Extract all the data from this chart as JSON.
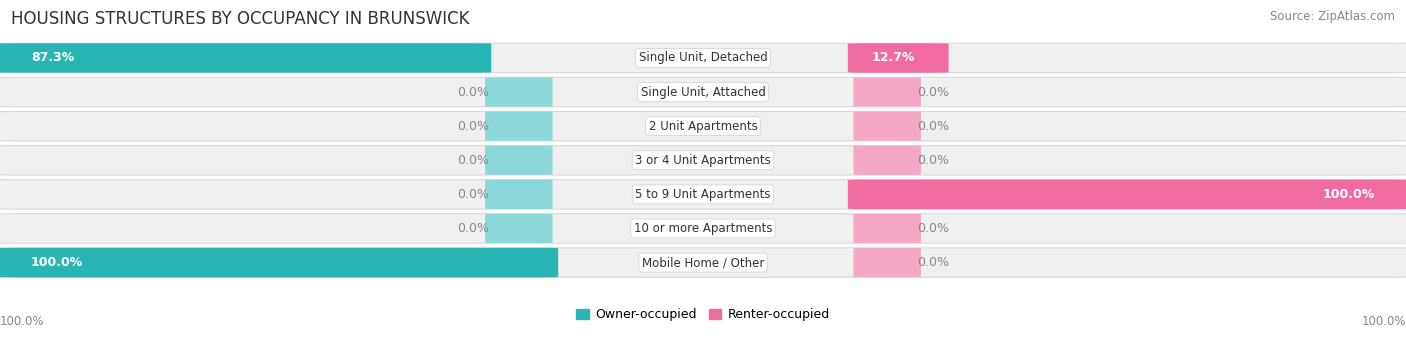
{
  "title": "HOUSING STRUCTURES BY OCCUPANCY IN BRUNSWICK",
  "source": "Source: ZipAtlas.com",
  "categories": [
    "Single Unit, Detached",
    "Single Unit, Attached",
    "2 Unit Apartments",
    "3 or 4 Unit Apartments",
    "5 to 9 Unit Apartments",
    "10 or more Apartments",
    "Mobile Home / Other"
  ],
  "owner_pct": [
    87.3,
    0.0,
    0.0,
    0.0,
    0.0,
    0.0,
    100.0
  ],
  "renter_pct": [
    12.7,
    0.0,
    0.0,
    0.0,
    100.0,
    0.0,
    0.0
  ],
  "owner_color": "#2ab5b5",
  "owner_stub_color": "#8dd8d8",
  "renter_color": "#f06ba0",
  "renter_stub_color": "#f5a8c5",
  "row_bg_color": "#f0f0f0",
  "row_border_color": "#d8d8d8",
  "title_fontsize": 12,
  "source_fontsize": 8.5,
  "legend_fontsize": 9,
  "bar_label_fontsize": 9,
  "cat_label_fontsize": 8.5,
  "axis_label_fontsize": 8.5,
  "figsize": [
    14.06,
    3.41
  ],
  "dpi": 100
}
